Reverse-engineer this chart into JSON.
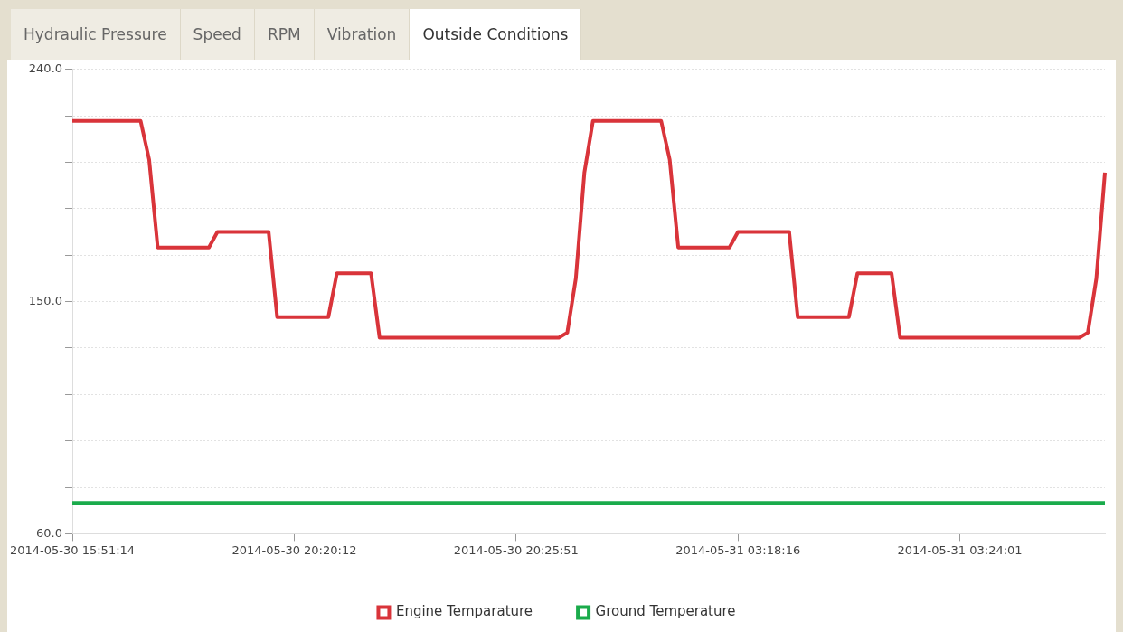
{
  "chart_data": {
    "type": "line",
    "annotations": [
      "Hydraulic Pressure",
      "Speed",
      "RPM",
      "Vibration",
      "Outside Conditions"
    ],
    "categories": [
      "2014-05-30 15:51:14",
      null,
      null,
      null,
      null,
      null,
      null,
      null,
      null,
      null,
      null,
      null,
      null,
      null,
      null,
      null,
      null,
      null,
      null,
      null,
      null,
      null,
      null,
      null,
      null,
      null,
      "2014-05-30 20:20:12",
      null,
      null,
      null,
      null,
      null,
      null,
      null,
      null,
      null,
      null,
      null,
      null,
      null,
      null,
      null,
      null,
      null,
      null,
      null,
      null,
      null,
      null,
      null,
      null,
      null,
      "2014-05-30 20:25:51",
      null,
      null,
      null,
      null,
      null,
      null,
      null,
      null,
      null,
      null,
      null,
      null,
      null,
      null,
      null,
      null,
      null,
      null,
      null,
      null,
      null,
      null,
      null,
      null,
      null,
      "2014-05-31 03:18:16",
      null,
      null,
      null,
      null,
      null,
      null,
      null,
      null,
      null,
      null,
      null,
      null,
      null,
      null,
      null,
      null,
      null,
      null,
      null,
      null,
      null,
      null,
      null,
      null,
      null,
      "2014-05-31 03:24:01",
      null,
      null,
      null,
      null,
      null,
      null,
      null,
      null,
      null,
      null,
      null,
      null,
      null,
      null,
      null,
      null,
      null
    ],
    "series": [
      {
        "name": "Engine Temparature",
        "color": "#d9343a",
        "values": [
          220,
          220,
          220,
          220,
          220,
          220,
          220,
          220,
          220,
          205,
          171,
          171,
          171,
          171,
          171,
          171,
          171,
          177,
          177,
          177,
          177,
          177,
          177,
          177,
          144,
          144,
          144,
          144,
          144,
          144,
          144,
          161,
          161,
          161,
          161,
          161,
          136,
          136,
          136,
          136,
          136,
          136,
          136,
          136,
          136,
          136,
          136,
          136,
          136,
          136,
          136,
          136,
          136,
          136,
          136,
          136,
          136,
          136,
          138,
          159,
          200,
          220,
          220,
          220,
          220,
          220,
          220,
          220,
          220,
          220,
          205,
          171,
          171,
          171,
          171,
          171,
          171,
          171,
          177,
          177,
          177,
          177,
          177,
          177,
          177,
          144,
          144,
          144,
          144,
          144,
          144,
          144,
          161,
          161,
          161,
          161,
          161,
          136,
          136,
          136,
          136,
          136,
          136,
          136,
          136,
          136,
          136,
          136,
          136,
          136,
          136,
          136,
          136,
          136,
          136,
          136,
          136,
          136,
          136,
          138,
          159,
          200
        ]
      },
      {
        "name": "Ground Temperature",
        "color": "#1aab4b",
        "values": [
          72,
          72,
          72,
          72,
          72,
          72,
          72,
          72,
          72,
          72,
          72,
          72,
          72,
          72,
          72,
          72,
          72,
          72,
          72,
          72,
          72,
          72,
          72,
          72,
          72,
          72,
          72,
          72,
          72,
          72,
          72,
          72,
          72,
          72,
          72,
          72,
          72,
          72,
          72,
          72,
          72,
          72,
          72,
          72,
          72,
          72,
          72,
          72,
          72,
          72,
          72,
          72,
          72,
          72,
          72,
          72,
          72,
          72,
          72,
          72,
          72,
          72,
          72,
          72,
          72,
          72,
          72,
          72,
          72,
          72,
          72,
          72,
          72,
          72,
          72,
          72,
          72,
          72,
          72,
          72,
          72,
          72,
          72,
          72,
          72,
          72,
          72,
          72,
          72,
          72,
          72,
          72,
          72,
          72,
          72,
          72,
          72,
          72,
          72,
          72,
          72,
          72,
          72,
          72,
          72,
          72,
          72,
          72,
          72,
          72,
          72,
          72,
          72,
          72,
          72,
          72,
          72,
          72,
          72,
          72,
          72,
          72
        ]
      }
    ],
    "ylim": [
      60,
      240
    ],
    "yticks": [
      {
        "value": 60,
        "label": "60.0"
      },
      {
        "value": 78,
        "label": null
      },
      {
        "value": 96,
        "label": null
      },
      {
        "value": 114,
        "label": null
      },
      {
        "value": 132,
        "label": null
      },
      {
        "value": 150,
        "label": "150.0"
      },
      {
        "value": 168,
        "label": null
      },
      {
        "value": 186,
        "label": null
      },
      {
        "value": 204,
        "label": null
      },
      {
        "value": 222,
        "label": null
      },
      {
        "value": 240,
        "label": "240.0"
      }
    ],
    "grid": "y",
    "legend": "bottom",
    "marker": "none",
    "line_style": "solid"
  }
}
